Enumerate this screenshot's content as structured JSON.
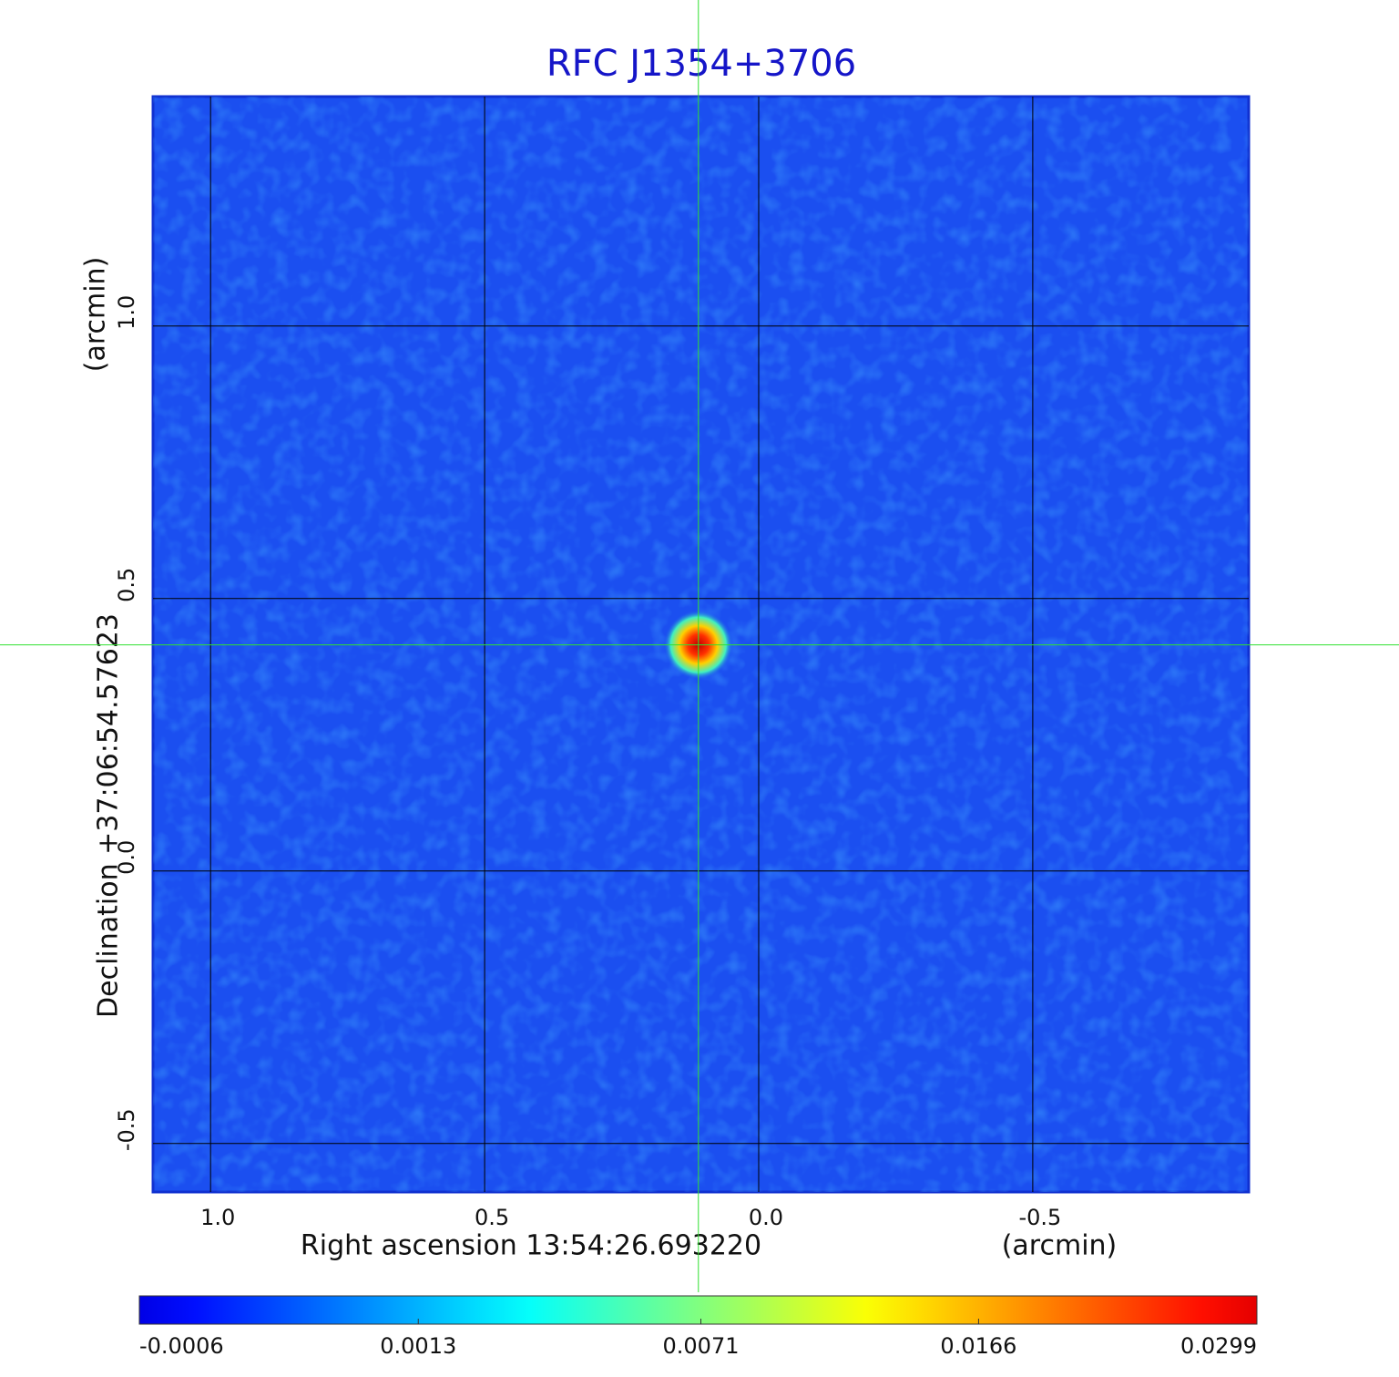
{
  "chart_data": {
    "type": "image",
    "title": "RFC J1354+3706",
    "xlabel": "Right ascension  13:54:26.693220",
    "xunit": "(arcmin)",
    "ylabel": "Declination  +37:06:54.57623",
    "yunit": "(arcmin)",
    "xlim": [
      1.105,
      -0.894
    ],
    "ylim": [
      -0.589,
      1.421
    ],
    "xticks": [
      {
        "value": 1,
        "label": "1.0"
      },
      0.5,
      {
        "value": 0,
        "label": "0.0"
      },
      -0.5
    ],
    "yticks": [
      -0.5,
      {
        "value": 0,
        "label": "0.0"
      },
      0.5,
      {
        "value": 1,
        "label": "1.0"
      }
    ],
    "grid": true,
    "source": {
      "x": 0.11,
      "y": 0.415,
      "peak": 0.0299
    },
    "crosshair": true,
    "color_scale": "sqrt",
    "colormap": "jet",
    "clim": [
      -0.0006,
      0.0299
    ],
    "cticks": [
      -0.0006,
      0.0013,
      0.0071,
      0.0166,
      0.0299
    ]
  }
}
